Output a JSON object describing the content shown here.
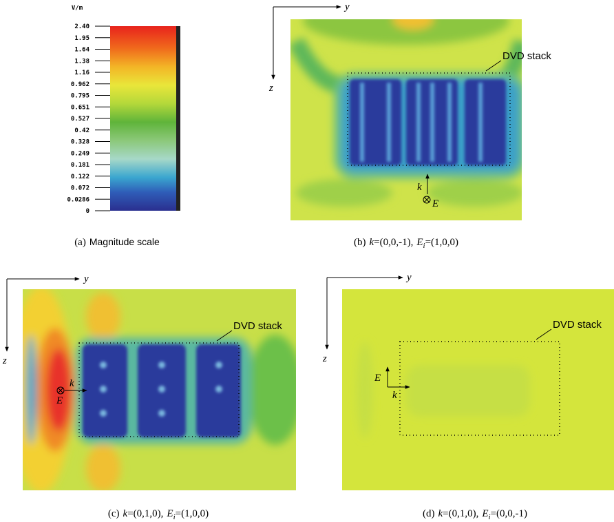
{
  "colorbar": {
    "unit": "V/m",
    "labels": [
      "2.40",
      "1.95",
      "1.64",
      "1.38",
      "1.16",
      "0.962",
      "0.795",
      "0.651",
      "0.527",
      "0.42",
      "0.328",
      "0.249",
      "0.181",
      "0.122",
      "0.072",
      "0.0286",
      "0"
    ]
  },
  "panels": [
    {
      "caption": [
        "(a)",
        "Magnitude scale"
      ]
    },
    {
      "axes": {
        "y": "y",
        "z": "z"
      },
      "annotations": {
        "stack": "DVD stack",
        "k": "k",
        "e": "E"
      },
      "caption": [
        "(b)",
        "k",
        "=(0,0,-1),",
        "E",
        "i",
        "=(1,0,0)"
      ]
    },
    {
      "axes": {
        "y": "y",
        "z": "z"
      },
      "annotations": {
        "stack": "DVD stack",
        "k": "k",
        "e": "E"
      },
      "caption": [
        "(c)",
        "k",
        "=(0,1,0),",
        "E",
        "i",
        "=(1,0,0)"
      ]
    },
    {
      "axes": {
        "y": "y",
        "z": "z"
      },
      "annotations": {
        "stack": "DVD stack",
        "k": "k",
        "e": "E"
      },
      "caption": [
        "(d)",
        "k",
        "=(0,1,0),",
        "E",
        "i",
        "=(0,0,-1)"
      ]
    }
  ]
}
